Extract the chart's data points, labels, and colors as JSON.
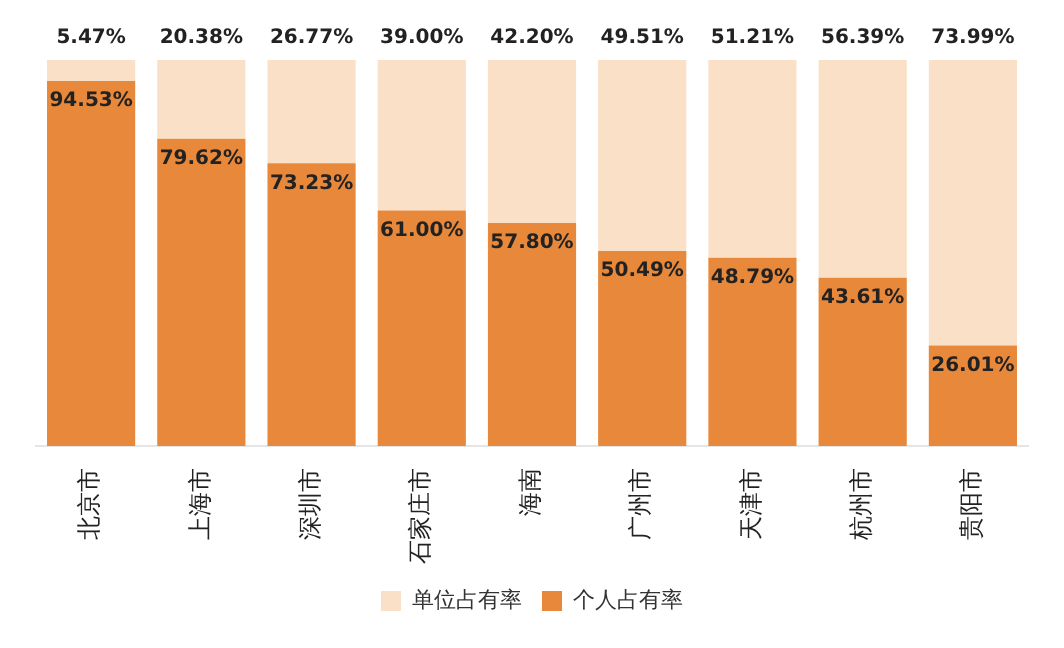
{
  "chart_data": {
    "type": "bar",
    "stacked": true,
    "categories": [
      "北京市",
      "上海市",
      "深圳市",
      "石家庄市",
      "海南",
      "广州市",
      "天津市",
      "杭州市",
      "贵阳市"
    ],
    "series": [
      {
        "name": "个人占有率",
        "color": "#e8883a",
        "values": [
          94.53,
          79.62,
          73.23,
          61.0,
          57.8,
          50.49,
          48.79,
          43.61,
          26.01
        ],
        "value_labels": [
          "94.53%",
          "79.62%",
          "73.23%",
          "61.00%",
          "57.80%",
          "50.49%",
          "48.79%",
          "43.61%",
          "26.01%"
        ]
      },
      {
        "name": "单位占有率",
        "color": "#fbe0c8",
        "values": [
          5.47,
          20.38,
          26.77,
          39.0,
          42.2,
          49.51,
          51.21,
          56.39,
          73.99
        ],
        "value_labels": [
          "5.47%",
          "20.38%",
          "26.77%",
          "39.00%",
          "42.20%",
          "49.51%",
          "51.21%",
          "56.39%",
          "73.99%"
        ]
      }
    ],
    "legend": "bottom",
    "tick_labels": "x"
  }
}
